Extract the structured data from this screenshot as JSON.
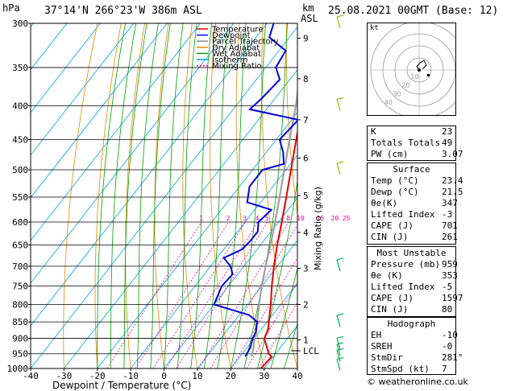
{
  "header": {
    "hpa_label": "hPa",
    "location": "37°14'N  266°23'W  386m  ASL",
    "km_label": "km",
    "asl_label": "ASL",
    "datetime": "25.08.2021  00GMT  (Base: 12)"
  },
  "legend": [
    {
      "label": "Temperature",
      "color": "#e00000",
      "dash": ""
    },
    {
      "label": "Dewpoint",
      "color": "#0000e0",
      "dash": ""
    },
    {
      "label": "Parcel Trajectory",
      "color": "#888888",
      "dash": ""
    },
    {
      "label": "Dry Adiabat",
      "color": "#e08a00",
      "dash": ""
    },
    {
      "label": "Wet Adiabat",
      "color": "#00a000",
      "dash": ""
    },
    {
      "label": "Isotherm",
      "color": "#00a0e0",
      "dash": ""
    },
    {
      "label": "Mixing Ratio",
      "color": "#e000a0",
      "dash": "2,2"
    }
  ],
  "colors": {
    "temperature": "#e00000",
    "dewpoint": "#0000e0",
    "parcel": "#a0a0a0",
    "dry": "#e08a00",
    "wet": "#00a000",
    "iso": "#00a0e0",
    "mix": "#e000a0",
    "lcl": "#000000"
  },
  "chart_data": {
    "type": "skew-t log-p",
    "xlabel": "Dewpoint / Temperature (°C)",
    "ylabel_right": "Mixing Ratio (g/kg)",
    "x_ticks": [
      -40,
      -30,
      -20,
      -10,
      0,
      10,
      20,
      30,
      40
    ],
    "xlim": [
      -40,
      40
    ],
    "pressure_ticks": [
      300,
      350,
      400,
      450,
      500,
      550,
      600,
      650,
      700,
      750,
      800,
      850,
      900,
      950,
      1000
    ],
    "ylim": [
      1000,
      300
    ],
    "y_scale": "log",
    "km_ticks": [
      {
        "km": "9",
        "p": 316
      },
      {
        "km": "8",
        "p": 364
      },
      {
        "km": "7",
        "p": 420
      },
      {
        "km": "6",
        "p": 480
      },
      {
        "km": "5",
        "p": 547
      },
      {
        "km": "4",
        "p": 622
      },
      {
        "km": "3",
        "p": 705
      },
      {
        "km": "2",
        "p": 800
      },
      {
        "km": "1",
        "p": 905
      },
      {
        "km": "LCL",
        "p": 940
      }
    ],
    "mixing_ratio_labels": [
      "1",
      "2",
      "3",
      "4",
      "5",
      "8",
      "10",
      "15",
      "20",
      "25"
    ],
    "temperature": [
      [
        1000,
        29
      ],
      [
        960,
        29.5
      ],
      [
        950,
        28
      ],
      [
        930,
        26
      ],
      [
        900,
        23
      ],
      [
        870,
        22
      ],
      [
        850,
        20.5
      ],
      [
        800,
        17
      ],
      [
        750,
        13
      ],
      [
        700,
        9
      ],
      [
        650,
        5
      ],
      [
        600,
        1
      ],
      [
        550,
        -3.5
      ],
      [
        500,
        -8.5
      ],
      [
        450,
        -14
      ],
      [
        400,
        -20
      ],
      [
        350,
        -27
      ],
      [
        300,
        -35
      ]
    ],
    "dewpoint": [
      [
        959,
        21.5
      ],
      [
        930,
        21
      ],
      [
        900,
        19.5
      ],
      [
        880,
        19
      ],
      [
        850,
        17
      ],
      [
        830,
        13
      ],
      [
        800,
        0
      ],
      [
        750,
        -2
      ],
      [
        720,
        -1.5
      ],
      [
        700,
        -4
      ],
      [
        680,
        -8
      ],
      [
        660,
        -4.5
      ],
      [
        640,
        -4
      ],
      [
        620,
        -4
      ],
      [
        600,
        -6
      ],
      [
        575,
        -5
      ],
      [
        560,
        -14
      ],
      [
        530,
        -17
      ],
      [
        500,
        -17
      ],
      [
        490,
        -12
      ],
      [
        470,
        -15
      ],
      [
        450,
        -19
      ],
      [
        420,
        -18
      ],
      [
        405,
        -35
      ],
      [
        390,
        -34
      ],
      [
        365,
        -33
      ],
      [
        350,
        -37
      ],
      [
        330,
        -38
      ],
      [
        315,
        -46
      ],
      [
        300,
        -48
      ]
    ],
    "parcel": [
      [
        959,
        23.4
      ],
      [
        930,
        22
      ],
      [
        900,
        20
      ],
      [
        850,
        17
      ],
      [
        800,
        13.5
      ],
      [
        750,
        10
      ],
      [
        700,
        6.5
      ],
      [
        650,
        3
      ],
      [
        600,
        -1
      ],
      [
        550,
        -5.5
      ],
      [
        500,
        -10.5
      ],
      [
        450,
        -16
      ],
      [
        400,
        -22
      ],
      [
        350,
        -29.5
      ],
      [
        300,
        -38
      ]
    ],
    "wind_barbs": [
      {
        "p": 300
      },
      {
        "p": 400
      },
      {
        "p": 500
      },
      {
        "p": 700
      },
      {
        "p": 850
      },
      {
        "p": 920
      },
      {
        "p": 940
      },
      {
        "p": 960
      },
      {
        "p": 990
      }
    ]
  },
  "hodograph": {
    "corner_label": "kt",
    "rings": [
      "10",
      "20",
      "30",
      "40"
    ],
    "points": [
      [
        0,
        0
      ],
      [
        -2,
        3
      ],
      [
        1,
        6
      ],
      [
        4,
        8
      ],
      [
        6,
        4
      ],
      [
        3,
        1
      ]
    ]
  },
  "indices": [
    {
      "key": "K",
      "value": "23"
    },
    {
      "key": "Totals Totals",
      "value": "49"
    },
    {
      "key": "PW (cm)",
      "value": "3.07"
    }
  ],
  "surface": {
    "title": "Surface",
    "rows": [
      {
        "key": "Temp (°C)",
        "value": "23.4"
      },
      {
        "key": "Dewp (°C)",
        "value": "21.5"
      },
      {
        "key": "θe(K)",
        "value": "347"
      },
      {
        "key": "Lifted Index",
        "value": "-3"
      },
      {
        "key": "CAPE (J)",
        "value": "701"
      },
      {
        "key": "CIN (J)",
        "value": "261"
      }
    ]
  },
  "most_unstable": {
    "title": "Most Unstable",
    "rows": [
      {
        "key": "Pressure (mb)",
        "value": "959"
      },
      {
        "key": "θe (K)",
        "value": "353"
      },
      {
        "key": "Lifted Index",
        "value": "-5"
      },
      {
        "key": "CAPE (J)",
        "value": "1597"
      },
      {
        "key": "CIN (J)",
        "value": "80"
      }
    ]
  },
  "hodograph_table": {
    "title": "Hodograph",
    "rows": [
      {
        "key": "EH",
        "value": "-10"
      },
      {
        "key": "SREH",
        "value": "-0"
      },
      {
        "key": "StmDir",
        "value": "281°"
      },
      {
        "key": "StmSpd (kt)",
        "value": "7"
      }
    ]
  },
  "footer": "© weatheronline.co.uk"
}
